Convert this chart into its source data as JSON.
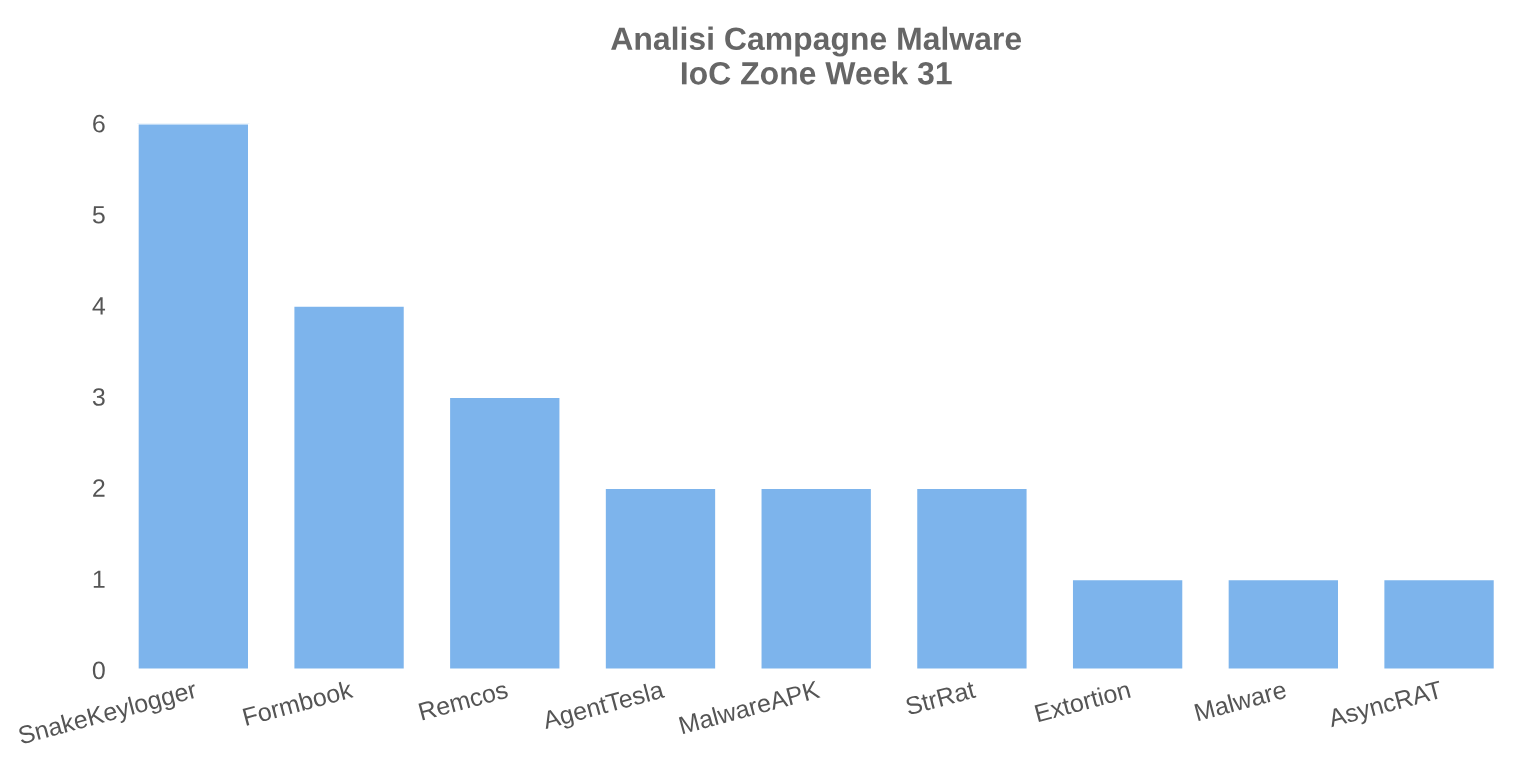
{
  "chart_data": {
    "type": "bar",
    "title": "Analisi Campagne Malware\nIoC Zone Week 31",
    "categories": [
      "SnakeKeylogger",
      "Formbook",
      "Remcos",
      "AgentTesla",
      "MalwareAPK",
      "StrRat",
      "Extortion",
      "Malware",
      "AsyncRAT"
    ],
    "values": [
      6,
      4,
      3,
      2,
      2,
      2,
      1,
      1,
      1
    ],
    "color": "#7db4ec",
    "ylim": [
      0,
      6
    ],
    "yticks": [
      0,
      1,
      2,
      3,
      4,
      5,
      6
    ],
    "grid": false,
    "legend": false
  }
}
